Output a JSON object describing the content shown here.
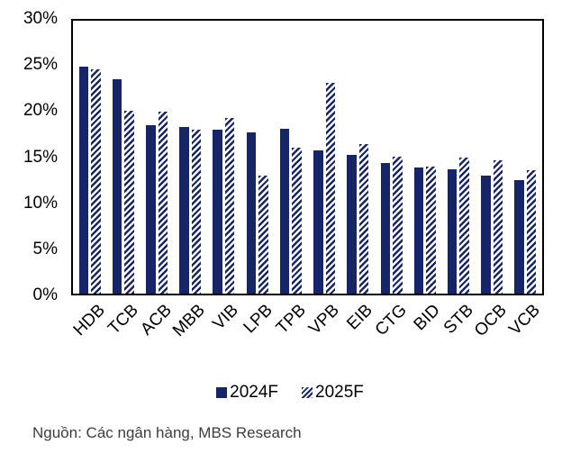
{
  "chart_data": {
    "type": "bar",
    "title": "",
    "xlabel": "",
    "ylabel": "",
    "categories": [
      "HDB",
      "TCB",
      "ACB",
      "MBB",
      "VIB",
      "LPB",
      "TPB",
      "VPB",
      "EIB",
      "CTG",
      "BID",
      "STB",
      "OCB",
      "VCB"
    ],
    "series": [
      {
        "name": "2024F",
        "style": "solid",
        "values": [
          25.0,
          23.6,
          18.5,
          18.3,
          18.0,
          17.7,
          18.1,
          15.7,
          15.2,
          14.4,
          13.9,
          13.7,
          13.0,
          12.5
        ]
      },
      {
        "name": "2025F",
        "style": "hatched",
        "values": [
          24.7,
          20.1,
          20.0,
          18.0,
          19.3,
          13.0,
          16.0,
          23.2,
          16.4,
          15.1,
          14.0,
          15.0,
          14.7,
          13.6
        ]
      }
    ],
    "ylim": [
      0,
      30
    ],
    "ytick_step": 5,
    "ytick_labels": [
      "0%",
      "5%",
      "10%",
      "15%",
      "20%",
      "25%",
      "30%"
    ],
    "grid": false,
    "legend_position": "bottom"
  },
  "colors": {
    "navy": "#162567",
    "axis_border": "#000000",
    "axis_text": "#000000",
    "source_text": "#3d3d3d",
    "background": "#ffffff"
  },
  "source_note": "Nguồn: Các ngân hàng, MBS Research"
}
